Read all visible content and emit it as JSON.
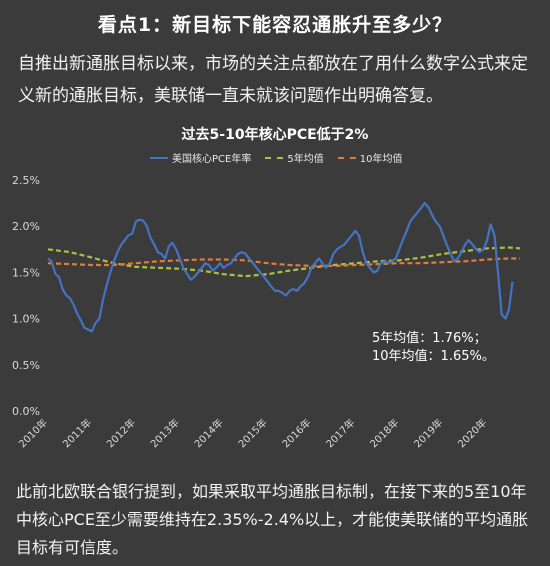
{
  "header": {
    "title": "看点1：新目标下能容忍通胀升至多少？",
    "intro": "自推出新通胀目标以来，市场的关注点都放在了用什么数字公式来定义新的通胀目标，美联储一直未就该问题作出明确答复。"
  },
  "annotation": {
    "line1": "5年均值：1.76%；",
    "line2": "10年均值：1.65%。"
  },
  "footer": {
    "text": "此前北欧联合银行提到，如果采取平均通胀目标制，在接下来的5至10年中核心PCE至少需要维持在2.35%-2.4%以上，才能使美联储的平均通胀目标有可信度。"
  },
  "colors": {
    "background": "#3b3b3b",
    "core_pce": "#4472c4",
    "avg_5y": "#a9c23f",
    "avg_10y": "#e07b39",
    "axis_text": "#d9d9d9"
  },
  "chart_data": {
    "type": "line",
    "title": "过去5-10年核心PCE低于2%",
    "xlabel": "",
    "ylabel": "",
    "ylim": [
      0,
      2.5
    ],
    "yticks": [
      "0.0%",
      "0.5%",
      "1.0%",
      "1.5%",
      "2.0%",
      "2.5%"
    ],
    "xticks": [
      "2010年",
      "2011年",
      "2012年",
      "2013年",
      "2014年",
      "2015年",
      "2016年",
      "2017年",
      "2018年",
      "2019年",
      "2020年"
    ],
    "x_start": 2010.0,
    "x_end": 2020.75,
    "legend_position": "top",
    "grid": false,
    "series": [
      {
        "name": "美国核心PCE年率",
        "style": "solid",
        "x": [
          2010.0,
          2010.08,
          2010.17,
          2010.25,
          2010.33,
          2010.42,
          2010.5,
          2010.58,
          2010.67,
          2010.75,
          2010.83,
          2010.92,
          2011.0,
          2011.08,
          2011.17,
          2011.25,
          2011.33,
          2011.42,
          2011.5,
          2011.58,
          2011.67,
          2011.75,
          2011.83,
          2011.92,
          2012.0,
          2012.08,
          2012.17,
          2012.25,
          2012.33,
          2012.42,
          2012.5,
          2012.58,
          2012.67,
          2012.75,
          2012.83,
          2012.92,
          2013.0,
          2013.08,
          2013.17,
          2013.25,
          2013.33,
          2013.42,
          2013.5,
          2013.58,
          2013.67,
          2013.75,
          2013.83,
          2013.92,
          2014.0,
          2014.08,
          2014.17,
          2014.25,
          2014.33,
          2014.42,
          2014.5,
          2014.58,
          2014.67,
          2014.75,
          2014.83,
          2014.92,
          2015.0,
          2015.08,
          2015.17,
          2015.25,
          2015.33,
          2015.42,
          2015.5,
          2015.58,
          2015.67,
          2015.75,
          2015.83,
          2015.92,
          2016.0,
          2016.08,
          2016.17,
          2016.25,
          2016.33,
          2016.42,
          2016.5,
          2016.58,
          2016.67,
          2016.75,
          2016.83,
          2016.92,
          2017.0,
          2017.08,
          2017.17,
          2017.25,
          2017.33,
          2017.42,
          2017.5,
          2017.58,
          2017.67,
          2017.75,
          2017.83,
          2017.92,
          2018.0,
          2018.08,
          2018.17,
          2018.25,
          2018.33,
          2018.42,
          2018.5,
          2018.58,
          2018.67,
          2018.75,
          2018.83,
          2018.92,
          2019.0,
          2019.08,
          2019.17,
          2019.25,
          2019.33,
          2019.42,
          2019.5,
          2019.58,
          2019.67,
          2019.75,
          2019.83,
          2019.92,
          2020.0,
          2020.08,
          2020.17,
          2020.25,
          2020.33,
          2020.42,
          2020.5,
          2020.58
        ],
        "values": [
          1.65,
          1.62,
          1.48,
          1.45,
          1.32,
          1.25,
          1.22,
          1.15,
          1.05,
          0.98,
          0.9,
          0.88,
          0.86,
          0.95,
          1.0,
          1.2,
          1.35,
          1.5,
          1.62,
          1.72,
          1.8,
          1.85,
          1.9,
          1.92,
          2.05,
          2.07,
          2.06,
          2.0,
          1.88,
          1.8,
          1.72,
          1.7,
          1.65,
          1.78,
          1.82,
          1.75,
          1.65,
          1.55,
          1.48,
          1.42,
          1.45,
          1.5,
          1.55,
          1.6,
          1.58,
          1.52,
          1.55,
          1.6,
          1.55,
          1.58,
          1.6,
          1.65,
          1.7,
          1.72,
          1.7,
          1.65,
          1.6,
          1.55,
          1.5,
          1.45,
          1.4,
          1.35,
          1.3,
          1.3,
          1.28,
          1.25,
          1.3,
          1.32,
          1.3,
          1.35,
          1.38,
          1.45,
          1.55,
          1.6,
          1.65,
          1.6,
          1.55,
          1.6,
          1.7,
          1.75,
          1.78,
          1.8,
          1.85,
          1.9,
          1.95,
          1.9,
          1.72,
          1.6,
          1.55,
          1.5,
          1.52,
          1.6,
          1.62,
          1.6,
          1.62,
          1.65,
          1.75,
          1.85,
          1.95,
          2.05,
          2.1,
          2.15,
          2.2,
          2.25,
          2.2,
          2.12,
          2.05,
          2.0,
          1.9,
          1.8,
          1.7,
          1.62,
          1.65,
          1.72,
          1.8,
          1.85,
          1.8,
          1.75,
          1.72,
          1.75,
          1.85,
          2.02,
          1.9,
          1.5,
          1.05,
          1.0,
          1.1,
          1.4
        ]
      },
      {
        "name": "5年均值",
        "style": "dashed",
        "x": [
          2010.0,
          2010.5,
          2011.0,
          2011.5,
          2012.0,
          2012.5,
          2013.0,
          2013.5,
          2014.0,
          2014.5,
          2015.0,
          2015.5,
          2016.0,
          2016.5,
          2017.0,
          2017.5,
          2018.0,
          2018.5,
          2019.0,
          2019.5,
          2020.0,
          2020.5,
          2020.75
        ],
        "values": [
          1.75,
          1.72,
          1.66,
          1.6,
          1.56,
          1.55,
          1.54,
          1.52,
          1.48,
          1.46,
          1.48,
          1.52,
          1.55,
          1.58,
          1.6,
          1.62,
          1.63,
          1.66,
          1.7,
          1.73,
          1.76,
          1.77,
          1.76
        ]
      },
      {
        "name": "10年均值",
        "style": "dashed",
        "x": [
          2010.0,
          2010.5,
          2011.0,
          2011.5,
          2012.0,
          2012.5,
          2013.0,
          2013.5,
          2014.0,
          2014.5,
          2015.0,
          2015.5,
          2016.0,
          2016.5,
          2017.0,
          2017.5,
          2018.0,
          2018.5,
          2019.0,
          2019.5,
          2020.0,
          2020.5,
          2020.75
        ],
        "values": [
          1.6,
          1.59,
          1.58,
          1.58,
          1.6,
          1.62,
          1.63,
          1.64,
          1.64,
          1.63,
          1.6,
          1.58,
          1.57,
          1.57,
          1.58,
          1.59,
          1.6,
          1.6,
          1.61,
          1.62,
          1.64,
          1.65,
          1.65
        ]
      }
    ]
  }
}
